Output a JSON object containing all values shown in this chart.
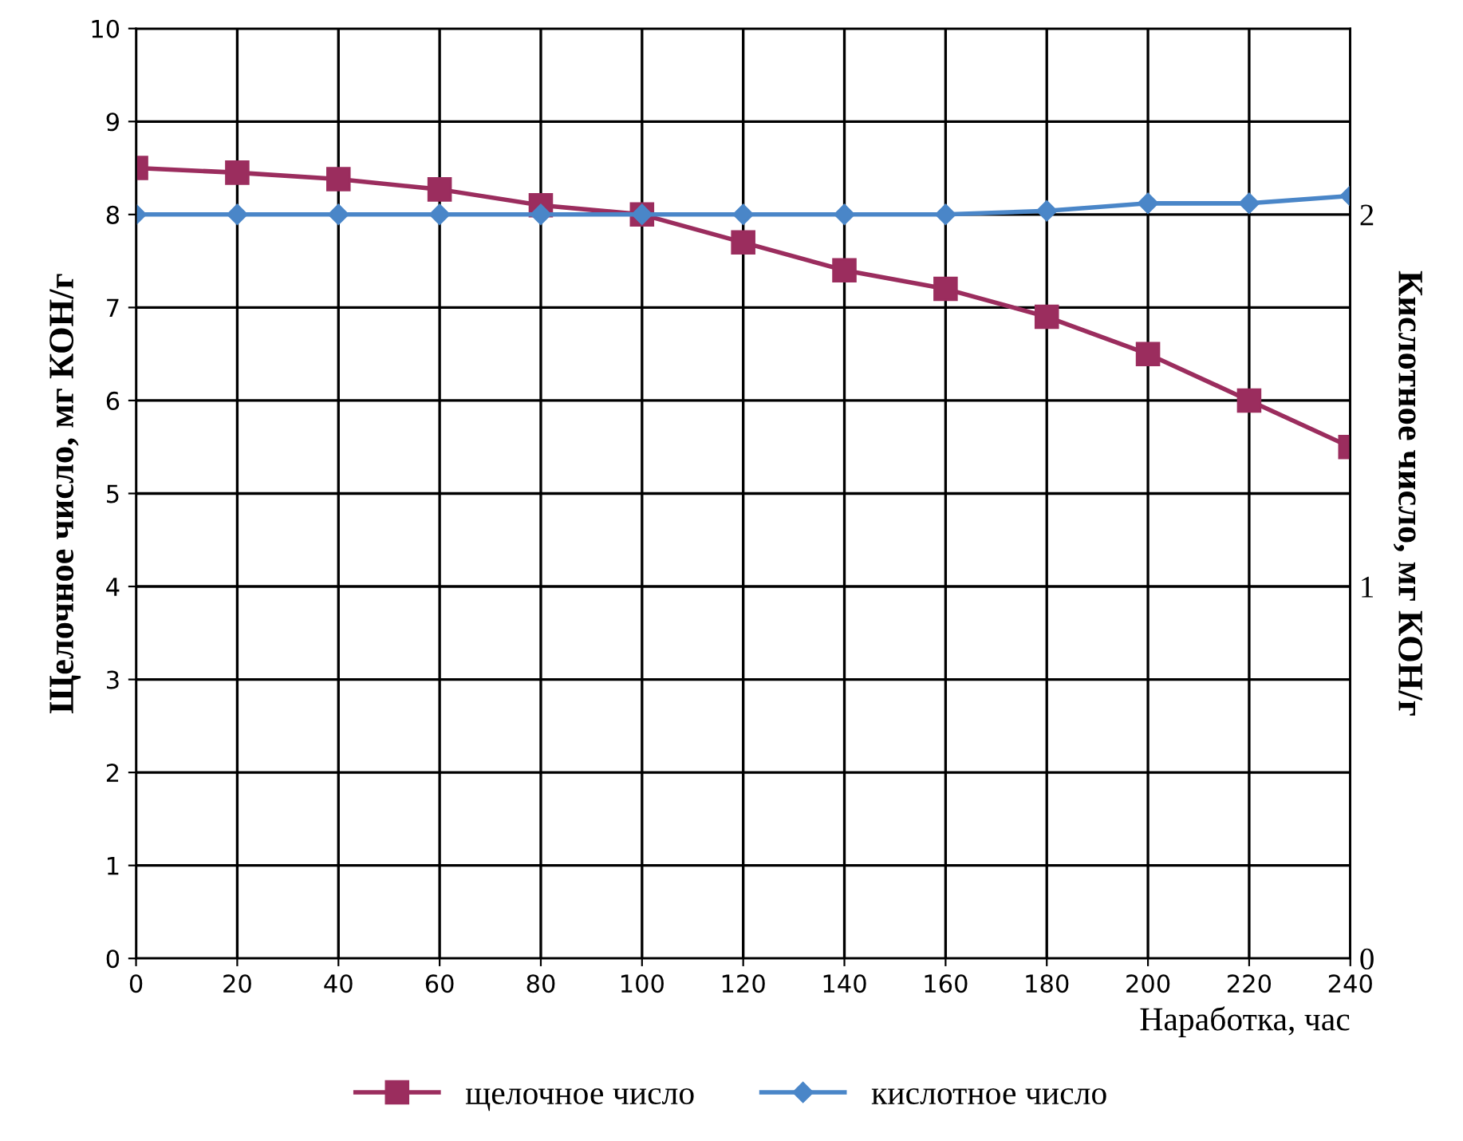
{
  "chart_data": {
    "type": "line",
    "xlabel": "Наработка, час",
    "ylabel": "Щелочное число, мг КОН/г",
    "y2label": "Кислотное число, мг КОН/г",
    "x": [
      0,
      20,
      40,
      60,
      80,
      100,
      120,
      140,
      160,
      180,
      200,
      220,
      240
    ],
    "xlim": [
      0,
      240
    ],
    "xticks": [
      0,
      20,
      40,
      60,
      80,
      100,
      120,
      140,
      160,
      180,
      200,
      220,
      240
    ],
    "ylim": [
      0,
      10
    ],
    "yticks": [
      0,
      1,
      2,
      3,
      4,
      5,
      6,
      7,
      8,
      9,
      10
    ],
    "y2lim": [
      0,
      2.5
    ],
    "y2ticks": [
      0,
      1,
      2
    ],
    "grid": true,
    "legend": "bottom",
    "line_style": "solid",
    "series": [
      {
        "name": "щелочное число",
        "color": "#9b2d5e",
        "marker": "square",
        "values": [
          8.5,
          8.45,
          8.38,
          8.27,
          8.1,
          8.0,
          7.7,
          7.4,
          7.2,
          6.9,
          6.5,
          6.0,
          5.5
        ]
      },
      {
        "name": "кислотное число",
        "color": "#4a86c8",
        "marker": "diamond",
        "axis": "y2",
        "values": [
          2.0,
          2.0,
          2.0,
          2.0,
          2.0,
          2.0,
          2.0,
          2.0,
          2.0,
          2.01,
          2.03,
          2.03,
          2.05
        ]
      }
    ]
  }
}
